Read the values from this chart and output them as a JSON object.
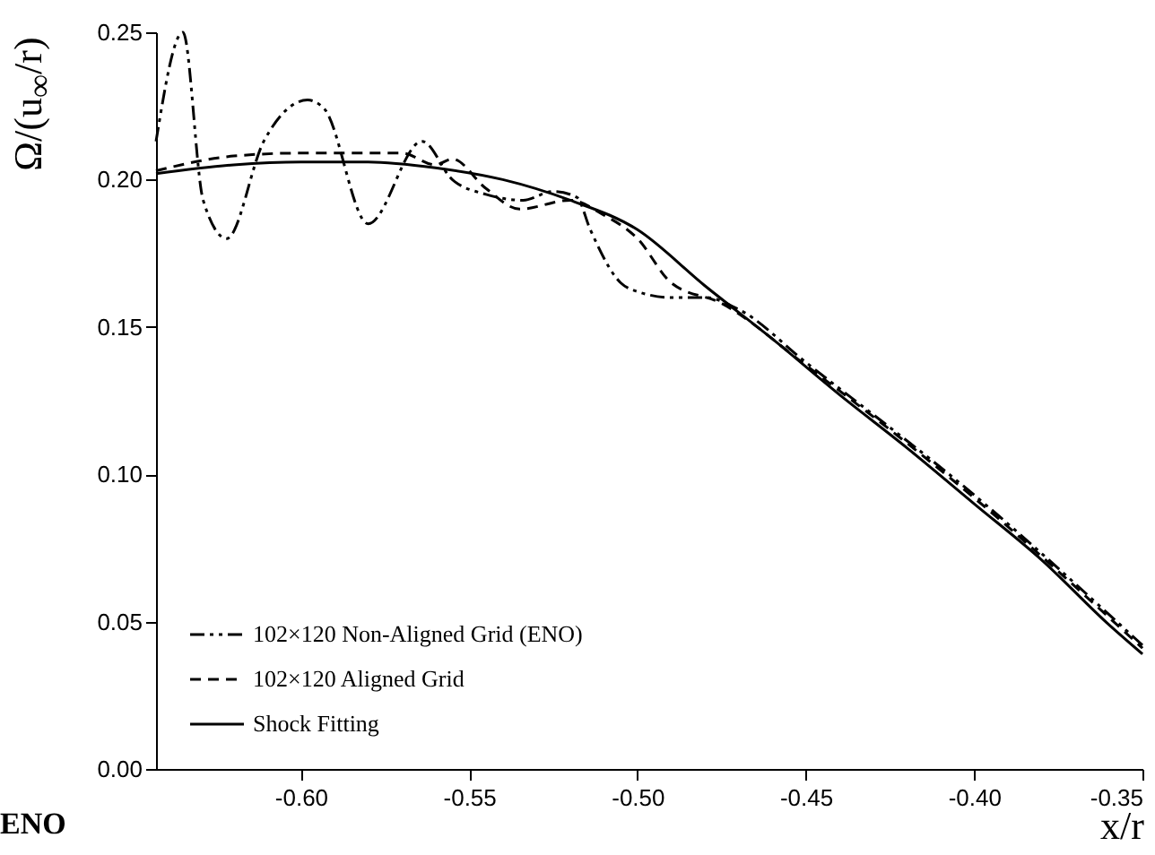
{
  "chart_data": {
    "type": "line",
    "xlabel": "x/r",
    "ylabel": "Ω/(u$_{∞}$/r)",
    "annotations": [
      "ENO"
    ],
    "xlim": [
      -0.643,
      -0.35
    ],
    "ylim": [
      0,
      0.25
    ],
    "xticks": [
      {
        "value": -0.6,
        "label": "-0.60"
      },
      {
        "value": -0.55,
        "label": "-0.55"
      },
      {
        "value": -0.5,
        "label": "-0.50"
      },
      {
        "value": -0.45,
        "label": "-0.45"
      },
      {
        "value": -0.4,
        "label": "-0.40"
      },
      {
        "value": -0.35,
        "label": "-0.35"
      }
    ],
    "yticks": [
      {
        "value": 0,
        "label": "0.00"
      },
      {
        "value": 0.05,
        "label": "0.05"
      },
      {
        "value": 0.1,
        "label": "0.10"
      },
      {
        "value": 0.15,
        "label": "0.15"
      },
      {
        "value": 0.2,
        "label": "0.20"
      },
      {
        "value": 0.25,
        "label": "0.25"
      }
    ],
    "grid": false,
    "legend": "bottom left",
    "marker": "none",
    "series": [
      {
        "name": "102×120 Non-Aligned Grid (ENO)",
        "color": "#000000",
        "line_style": "dashdot",
        "x": [
          -0.643,
          -0.635,
          -0.629,
          -0.622,
          -0.611,
          -0.598,
          -0.593,
          -0.58,
          -0.564,
          -0.555,
          -0.545,
          -0.534,
          -0.525,
          -0.518,
          -0.514,
          -0.505,
          -0.5,
          -0.49,
          -0.48,
          -0.47,
          -0.45,
          -0.4,
          -0.35
        ],
        "values": [
          0.213,
          0.25,
          0.193,
          0.18,
          0.213,
          0.227,
          0.224,
          0.185,
          0.213,
          0.2,
          0.195,
          0.193,
          0.196,
          0.194,
          0.183,
          0.165,
          0.162,
          0.16,
          0.16,
          0.156,
          0.138,
          0.093,
          0.042
        ]
      },
      {
        "name": "102×120 Aligned Grid",
        "color": "#000000",
        "line_style": "dashed",
        "x": [
          -0.643,
          -0.62,
          -0.6,
          -0.57,
          -0.56,
          -0.555,
          -0.545,
          -0.535,
          -0.52,
          -0.51,
          -0.5,
          -0.49,
          -0.475,
          -0.45,
          -0.4,
          -0.35
        ],
        "values": [
          0.203,
          0.208,
          0.209,
          0.209,
          0.205,
          0.207,
          0.197,
          0.19,
          0.193,
          0.188,
          0.18,
          0.165,
          0.158,
          0.137,
          0.092,
          0.041
        ]
      },
      {
        "name": "Shock Fitting",
        "color": "#000000",
        "line_style": "solid",
        "x": [
          -0.643,
          -0.62,
          -0.6,
          -0.58,
          -0.56,
          -0.54,
          -0.52,
          -0.5,
          -0.48,
          -0.46,
          -0.44,
          -0.42,
          -0.4,
          -0.38,
          -0.36,
          -0.35
        ],
        "values": [
          0.202,
          0.205,
          0.206,
          0.206,
          0.204,
          0.2,
          0.193,
          0.183,
          0.164,
          0.146,
          0.127,
          0.109,
          0.09,
          0.071,
          0.049,
          0.039
        ]
      }
    ]
  }
}
